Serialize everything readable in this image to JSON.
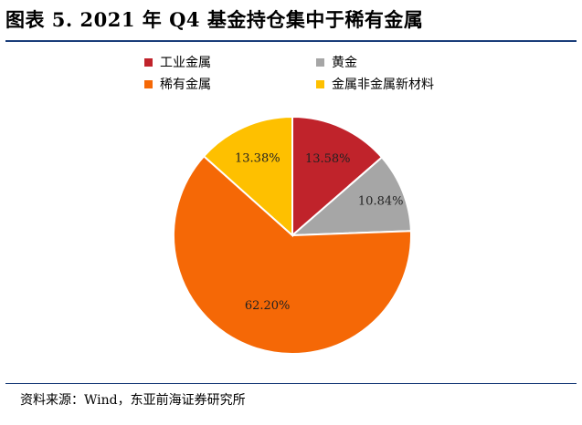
{
  "title": "图表 5.   2021 年 Q4 基金持仓集中于稀有金属",
  "source": "资料来源：Wind，东亚前海证券研究所",
  "chart_data": {
    "type": "pie",
    "categories": [
      "工业金属",
      "黄金",
      "稀有金属",
      "金属非金属新材料"
    ],
    "values": [
      13.58,
      10.84,
      62.2,
      13.38
    ],
    "labels": [
      "13.58%",
      "10.84%",
      "62.20%",
      "13.38%"
    ],
    "colors": [
      "#c0232b",
      "#a6a6a6",
      "#f56806",
      "#fec000"
    ],
    "legend": "top"
  }
}
